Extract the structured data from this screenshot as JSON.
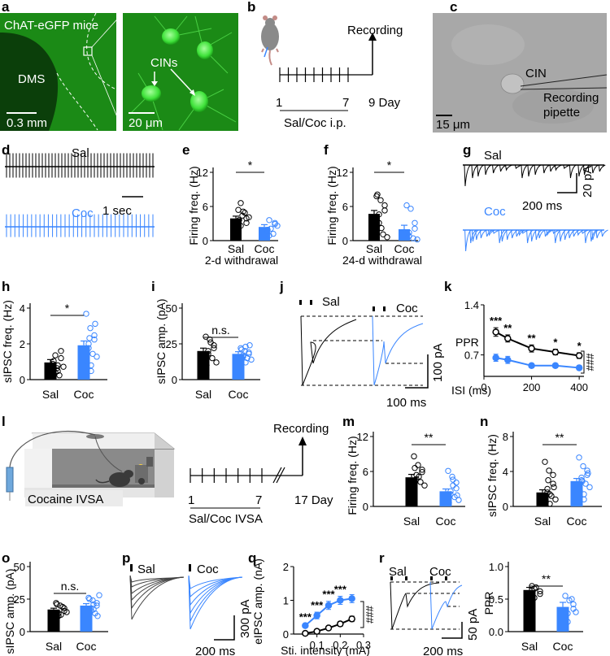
{
  "colors": {
    "sal": "#000000",
    "coc": "#3a86ff",
    "green_bg": "#1c8a18",
    "green_cell": "#5ff05a",
    "dic": "#a9a9a9"
  },
  "panels": {
    "a": {
      "letter": "a",
      "label_mouse": "ChAT-eGFP mice",
      "label_region": "DMS",
      "scale_left": "0.3 mm",
      "label_cins": "CINs",
      "scale_right": "20 μm"
    },
    "b": {
      "letter": "b",
      "recording": "Recording",
      "day_start": "1",
      "day_mid": "7",
      "day_end": "9 Day",
      "treatment": "Sal/Coc i.p.",
      "tick_count": 9
    },
    "c": {
      "letter": "c",
      "cin": "CIN",
      "pipette_1": "Recording",
      "pipette_2": "pipette",
      "scale": "15 μm"
    },
    "d": {
      "letter": "d",
      "sal": "Sal",
      "coc": "Coc",
      "scale": "1 sec"
    },
    "e": {
      "letter": "e",
      "ylabel": "Firing freq. (Hz)",
      "yticks": [
        "0",
        "6",
        "12"
      ],
      "cats": [
        "Sal",
        "Coc"
      ],
      "sig": "*",
      "xnote": "2-d withdrawal"
    },
    "f": {
      "letter": "f",
      "ylabel": "Firing freq. (Hz)",
      "yticks": [
        "0",
        "6",
        "12"
      ],
      "cats": [
        "Sal",
        "Coc"
      ],
      "sig": "*",
      "xnote": "24-d withdrawal"
    },
    "g": {
      "letter": "g",
      "sal": "Sal",
      "coc": "Coc",
      "scale_x": "200 ms",
      "scale_y": "20 pA"
    },
    "h": {
      "letter": "h",
      "ylabel": "sIPSC freq. (Hz)",
      "yticks": [
        "0",
        "2",
        "4"
      ],
      "cats": [
        "Sal",
        "Coc"
      ],
      "sig": "*"
    },
    "i": {
      "letter": "i",
      "ylabel": "sIPSC amp. (pA)",
      "yticks": [
        "0",
        "25",
        "50"
      ],
      "cats": [
        "Sal",
        "Coc"
      ],
      "sig": "n.s."
    },
    "j": {
      "letter": "j",
      "sal": "Sal",
      "coc": "Coc",
      "scale_x": "100 ms",
      "scale_y": "100 pA"
    },
    "k": {
      "letter": "k",
      "ylabel": "PPR",
      "yticks": [
        "0.7",
        "1.4"
      ],
      "xticks": [
        "0",
        "200",
        "400"
      ],
      "xlabel": "ISI (ms)",
      "stars": [
        "***",
        "**",
        "**",
        "*",
        "*"
      ],
      "hash": "###"
    },
    "l": {
      "letter": "l",
      "box_label": "Cocaine IVSA",
      "recording": "Recording",
      "day_start": "1",
      "day_mid": "7",
      "day_end": "17 Day",
      "treatment": "Sal/Coc IVSA",
      "tick_count": 7
    },
    "m": {
      "letter": "m",
      "ylabel": "Firing freq. (Hz)",
      "yticks": [
        "0",
        "6",
        "12"
      ],
      "cats": [
        "Sal",
        "Coc"
      ],
      "sig": "**"
    },
    "n": {
      "letter": "n",
      "ylabel": "sIPSC freq. (Hz)",
      "yticks": [
        "0",
        "4",
        "8"
      ],
      "cats": [
        "Sal",
        "Coc"
      ],
      "sig": "**"
    },
    "o": {
      "letter": "o",
      "ylabel": "sIPSC amp. (pA)",
      "yticks": [
        "0",
        "25",
        "50"
      ],
      "cats": [
        "Sal",
        "Coc"
      ],
      "sig": "n.s."
    },
    "p": {
      "letter": "p",
      "sal": "Sal",
      "coc": "Coc",
      "scale_x": "200 ms",
      "scale_y": "300 pA"
    },
    "q": {
      "letter": "q",
      "ylabel": "eIPSC amp. (nA)",
      "yticks": [
        "0",
        "1",
        "2"
      ],
      "xticks": [
        "0.1",
        "0.2",
        "0.3"
      ],
      "xlabel": "Sti. intensity (mA)",
      "stars": [
        "***",
        "***",
        "***",
        "***"
      ],
      "hash": "###"
    },
    "r": {
      "letter": "r",
      "sal": "Sal",
      "coc": "Coc",
      "scale_x": "200 ms",
      "scale_y": "50 pA",
      "ylabel": "PPR",
      "yticks": [
        "0.0",
        "0.5",
        "1.0"
      ],
      "cats": [
        "Sal",
        "Coc"
      ],
      "sig": "**"
    }
  },
  "chart_data": [
    {
      "panel": "e",
      "type": "bar",
      "ylabel": "Firing freq. (Hz)",
      "ylim": [
        0,
        12
      ],
      "categories": [
        "Sal",
        "Coc"
      ],
      "values": [
        3.9,
        2.4
      ],
      "errors": [
        0.4,
        0.4
      ],
      "points": [
        [
          5.4,
          4.4,
          3.9,
          3.1,
          2.6,
          6.6,
          4.9,
          4.1,
          3.6,
          5.1
        ],
        [
          1.6,
          2.1,
          3.1,
          2.9,
          3.6,
          0.9,
          1.2,
          2.6,
          1.9
        ]
      ]
    },
    {
      "panel": "f",
      "type": "bar",
      "ylabel": "Firing freq. (Hz)",
      "ylim": [
        0,
        12
      ],
      "categories": [
        "Sal",
        "Coc"
      ],
      "values": [
        4.7,
        2.0
      ],
      "errors": [
        0.6,
        0.7
      ],
      "points": [
        [
          7.8,
          7.1,
          6.2,
          5.3,
          4.6,
          3.1,
          1.1,
          0.6,
          8.1,
          2.2
        ],
        [
          6.2,
          5.6,
          3.1,
          2.1,
          1.4,
          0.8,
          0.4,
          0.2,
          1.2
        ]
      ]
    },
    {
      "panel": "h",
      "type": "bar",
      "ylabel": "sIPSC freq. (Hz)",
      "ylim": [
        0,
        5
      ],
      "categories": [
        "Sal",
        "Coc"
      ],
      "values": [
        1.2,
        2.4
      ],
      "errors": [
        0.2,
        0.3
      ],
      "points": [
        [
          1.1,
          0.8,
          1.5,
          2.0,
          1.7,
          0.5,
          0.3,
          0.9,
          1.3,
          0.6,
          1.0
        ],
        [
          4.6,
          3.6,
          3.1,
          2.8,
          2.5,
          2.2,
          1.8,
          1.6,
          1.3,
          1.0,
          0.6,
          3.9,
          2.9
        ]
      ]
    },
    {
      "panel": "i",
      "type": "bar",
      "ylabel": "sIPSC amp. (pA)",
      "ylim": [
        0,
        50
      ],
      "categories": [
        "Sal",
        "Coc"
      ],
      "values": [
        20,
        18
      ],
      "errors": [
        2,
        1.5
      ],
      "points": [
        [
          30,
          28,
          24,
          22,
          20,
          18,
          15,
          12,
          10,
          26
        ],
        [
          22,
          20,
          19,
          18,
          17,
          16,
          15,
          14,
          21,
          23,
          12,
          24
        ]
      ]
    },
    {
      "panel": "k",
      "type": "line",
      "xlabel": "ISI (ms)",
      "ylabel": "PPR",
      "xlim": [
        0,
        420
      ],
      "ylim": [
        0.4,
        1.4
      ],
      "x": [
        50,
        100,
        200,
        300,
        400
      ],
      "series": [
        {
          "name": "Sal",
          "values": [
            1.02,
            0.93,
            0.79,
            0.74,
            0.69
          ],
          "errors": [
            0.06,
            0.05,
            0.05,
            0.04,
            0.04
          ]
        },
        {
          "name": "Coc",
          "values": [
            0.66,
            0.63,
            0.55,
            0.55,
            0.52
          ],
          "errors": [
            0.05,
            0.05,
            0.03,
            0.03,
            0.03
          ]
        }
      ]
    },
    {
      "panel": "m",
      "type": "bar",
      "ylabel": "Firing freq. (Hz)",
      "ylim": [
        0,
        12
      ],
      "categories": [
        "Sal",
        "Coc"
      ],
      "values": [
        5.0,
        2.6
      ],
      "errors": [
        0.5,
        0.4
      ],
      "points": [
        [
          8.6,
          7.1,
          6.3,
          5.9,
          5.4,
          4.7,
          4.2,
          3.6,
          6.6,
          5.1
        ],
        [
          6.1,
          5.1,
          4.1,
          3.1,
          2.6,
          2.1,
          1.6,
          1.1,
          0.6,
          3.6,
          4.6,
          1.9
        ]
      ]
    },
    {
      "panel": "n",
      "type": "bar",
      "ylabel": "sIPSC freq. (Hz)",
      "ylim": [
        0,
        8
      ],
      "categories": [
        "Sal",
        "Coc"
      ],
      "values": [
        1.6,
        2.9
      ],
      "errors": [
        0.3,
        0.3
      ],
      "points": [
        [
          5.1,
          4.1,
          3.6,
          2.6,
          2.0,
          1.6,
          1.2,
          0.8,
          0.5,
          0.3,
          1.4,
          2.2,
          3.0
        ],
        [
          5.6,
          4.6,
          4.1,
          3.6,
          3.3,
          3.0,
          2.6,
          2.2,
          1.8,
          1.4,
          0.8,
          3.8,
          2.9
        ]
      ]
    },
    {
      "panel": "o",
      "type": "bar",
      "ylabel": "sIPSC amp. (pA)",
      "ylim": [
        0,
        50
      ],
      "categories": [
        "Sal",
        "Coc"
      ],
      "values": [
        17,
        20
      ],
      "errors": [
        1,
        1.5
      ],
      "points": [
        [
          22,
          20,
          18,
          16,
          14,
          12,
          19,
          15,
          21,
          13
        ],
        [
          26,
          24,
          22,
          20,
          18,
          16,
          14,
          28,
          25,
          21,
          17,
          12
        ]
      ]
    },
    {
      "panel": "q",
      "type": "line",
      "xlabel": "Sti. intensity (mA)",
      "ylabel": "eIPSC amp. (nA)",
      "xlim": [
        0,
        0.3
      ],
      "ylim": [
        0,
        2
      ],
      "x": [
        0.05,
        0.1,
        0.15,
        0.2,
        0.25
      ],
      "series": [
        {
          "name": "Sal",
          "values": [
            0.02,
            0.08,
            0.18,
            0.3,
            0.45
          ],
          "errors": [
            0.02,
            0.03,
            0.05,
            0.07,
            0.08
          ]
        },
        {
          "name": "Coc",
          "values": [
            0.25,
            0.55,
            0.85,
            1.0,
            1.05
          ],
          "errors": [
            0.05,
            0.1,
            0.12,
            0.12,
            0.12
          ]
        }
      ]
    },
    {
      "panel": "r",
      "type": "bar",
      "ylabel": "PPR",
      "ylim": [
        0,
        1.0
      ],
      "categories": [
        "Sal",
        "Coc"
      ],
      "values": [
        0.64,
        0.38
      ],
      "errors": [
        0.04,
        0.07
      ],
      "points": [
        [
          0.7,
          0.68,
          0.62,
          0.58,
          0.66,
          0.52
        ],
        [
          0.55,
          0.48,
          0.42,
          0.35,
          0.28,
          0.15,
          0.5,
          0.3
        ]
      ]
    }
  ]
}
